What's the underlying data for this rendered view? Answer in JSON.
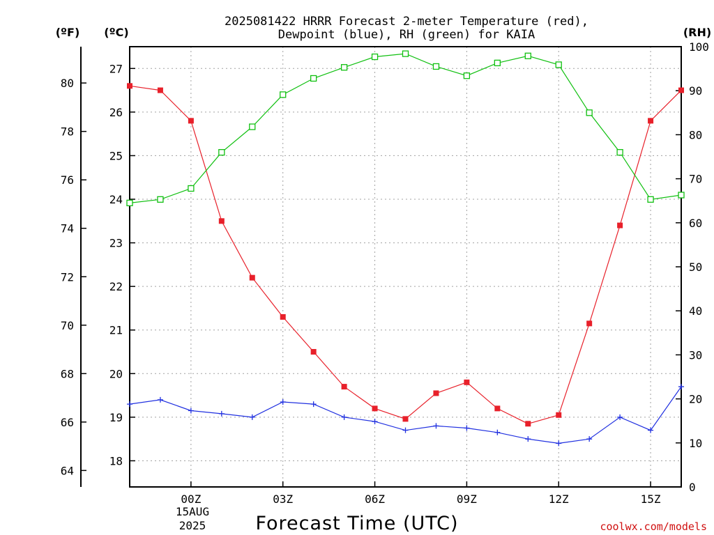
{
  "chart_data": {
    "type": "line",
    "title_lines": [
      "2025081422 HRRR Forecast 2-meter Temperature (red),",
      "Dewpoint (blue), RH (green) for KAIA"
    ],
    "xlabel": "Forecast Time (UTC)",
    "x": [
      -2,
      -1,
      0,
      1,
      2,
      3,
      4,
      5,
      6,
      7,
      8,
      9,
      10,
      11,
      12,
      13,
      14,
      15,
      16
    ],
    "x_ticks": [
      {
        "x": 0,
        "label": "00Z"
      },
      {
        "x": 3,
        "label": "03Z"
      },
      {
        "x": 6,
        "label": "06Z"
      },
      {
        "x": 9,
        "label": "09Z"
      },
      {
        "x": 12,
        "label": "12Z"
      },
      {
        "x": 15,
        "label": "15Z"
      }
    ],
    "x_date_labels": [
      "15AUG",
      "2025"
    ],
    "xlim": [
      -2,
      16
    ],
    "celsius_axis": {
      "unit_label": "(ºC)",
      "ylim": [
        17.4,
        27.5
      ],
      "ticks": [
        18,
        19,
        20,
        21,
        22,
        23,
        24,
        25,
        26,
        27
      ]
    },
    "fahrenheit_axis": {
      "unit_label": "(ºF)",
      "ticks": [
        64,
        66,
        68,
        70,
        72,
        74,
        76,
        78,
        80
      ]
    },
    "rh_axis": {
      "unit_label": "(RH)",
      "ylim": [
        0,
        100
      ],
      "ticks": [
        0,
        10,
        20,
        30,
        40,
        50,
        60,
        70,
        80,
        90,
        100
      ]
    },
    "grid": true,
    "series": [
      {
        "key": "temperature",
        "axis": "celsius",
        "color": "#e8202a",
        "marker": "filled-square",
        "values": [
          26.6,
          26.5,
          25.8,
          23.5,
          22.2,
          21.3,
          20.5,
          19.7,
          19.2,
          18.96,
          19.55,
          19.8,
          19.2,
          18.85,
          19.05,
          21.15,
          23.4,
          25.8,
          26.5
        ]
      },
      {
        "key": "dewpoint",
        "axis": "celsius",
        "color": "#2030e0",
        "marker": "plus",
        "values": [
          19.3,
          19.4,
          19.15,
          19.08,
          19.0,
          19.35,
          19.3,
          19.0,
          18.9,
          18.7,
          18.8,
          18.75,
          18.65,
          18.5,
          18.4,
          18.5,
          19.0,
          18.7,
          19.7
        ]
      },
      {
        "key": "rh",
        "axis": "rh",
        "color": "#10c010",
        "marker": "open-square",
        "values": [
          64.5,
          65.3,
          67.8,
          76,
          81.8,
          89.1,
          92.8,
          95.3,
          97.7,
          98.4,
          95.5,
          93.4,
          96.3,
          97.9,
          95.9,
          85,
          76,
          65.3,
          66.3
        ]
      }
    ],
    "credit": "coolwx.com/models"
  }
}
